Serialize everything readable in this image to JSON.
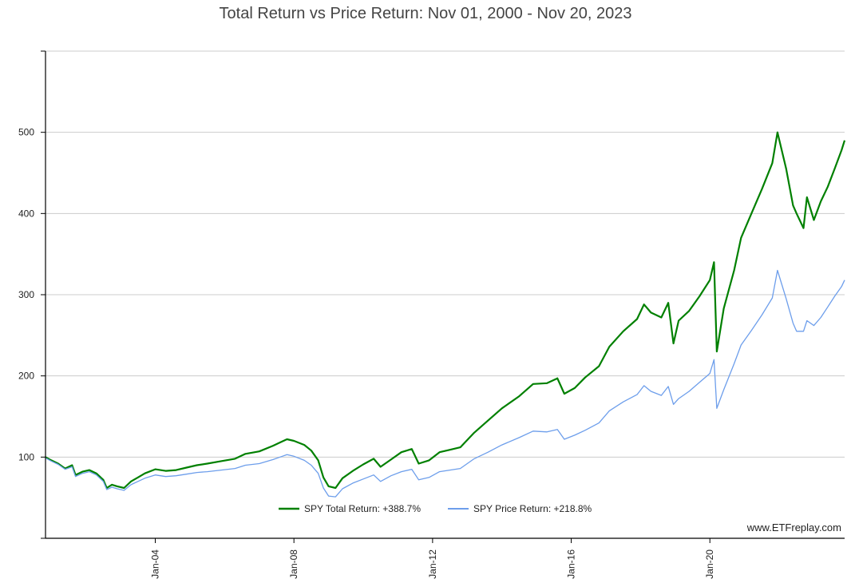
{
  "chart_data": {
    "type": "line",
    "title": "Total Return vs Price Return: Nov 01, 2000 - Nov 20, 2023",
    "xlabel": "",
    "ylabel": "",
    "xlim": [
      2000.833,
      2023.887
    ],
    "ylim": [
      0,
      600
    ],
    "grid": true,
    "y_ticks": [
      {
        "value": 100,
        "label": "100"
      },
      {
        "value": 200,
        "label": "200"
      },
      {
        "value": 300,
        "label": "300"
      },
      {
        "value": 400,
        "label": "400"
      },
      {
        "value": 500,
        "label": "500"
      }
    ],
    "x_ticks": [
      {
        "value": 2004.0,
        "label": "Jan-04"
      },
      {
        "value": 2008.0,
        "label": "Jan-08"
      },
      {
        "value": 2012.0,
        "label": "Jan-12"
      },
      {
        "value": 2016.0,
        "label": "Jan-16"
      },
      {
        "value": 2020.0,
        "label": "Jan-20"
      }
    ],
    "legend_position": "bottom-center",
    "series": [
      {
        "name": "SPY Total Return: +388.7%",
        "color": "#008000",
        "x": [
          2000.83,
          2001.0,
          2001.2,
          2001.4,
          2001.6,
          2001.7,
          2001.9,
          2002.1,
          2002.3,
          2002.5,
          2002.6,
          2002.75,
          2002.9,
          2003.1,
          2003.3,
          2003.5,
          2003.7,
          2004.0,
          2004.3,
          2004.6,
          2004.9,
          2005.2,
          2005.5,
          2005.9,
          2006.3,
          2006.6,
          2007.0,
          2007.4,
          2007.6,
          2007.8,
          2008.0,
          2008.3,
          2008.5,
          2008.7,
          2008.85,
          2009.0,
          2009.2,
          2009.4,
          2009.7,
          2010.0,
          2010.3,
          2010.5,
          2010.8,
          2011.1,
          2011.4,
          2011.6,
          2011.9,
          2012.2,
          2012.5,
          2012.8,
          2013.2,
          2013.6,
          2014.0,
          2014.5,
          2014.9,
          2015.3,
          2015.6,
          2015.8,
          2016.1,
          2016.4,
          2016.8,
          2017.1,
          2017.5,
          2017.9,
          2018.1,
          2018.3,
          2018.6,
          2018.8,
          2018.95,
          2019.1,
          2019.4,
          2019.7,
          2020.0,
          2020.12,
          2020.2,
          2020.4,
          2020.7,
          2020.9,
          2021.2,
          2021.5,
          2021.8,
          2021.95,
          2022.2,
          2022.4,
          2022.5,
          2022.7,
          2022.8,
          2023.0,
          2023.2,
          2023.4,
          2023.6,
          2023.8,
          2023.887
        ],
        "values": [
          100,
          96,
          92,
          86,
          90,
          78,
          82,
          84,
          80,
          72,
          62,
          66,
          64,
          62,
          70,
          75,
          80,
          85,
          83,
          84,
          87,
          90,
          92,
          95,
          98,
          104,
          107,
          114,
          118,
          122,
          120,
          115,
          108,
          96,
          75,
          64,
          62,
          74,
          83,
          91,
          98,
          88,
          97,
          106,
          110,
          92,
          96,
          106,
          109,
          112,
          130,
          145,
          160,
          175,
          190,
          191,
          197,
          178,
          185,
          198,
          212,
          236,
          255,
          270,
          288,
          278,
          272,
          290,
          240,
          268,
          280,
          298,
          318,
          340,
          230,
          283,
          330,
          370,
          400,
          430,
          462,
          500,
          455,
          410,
          400,
          382,
          420,
          392,
          415,
          433,
          455,
          478,
          490
        ]
      },
      {
        "name": "SPY Price Return: +218.8%",
        "color": "#6d9eeb",
        "x": [
          2000.83,
          2001.0,
          2001.2,
          2001.4,
          2001.6,
          2001.7,
          2001.9,
          2002.1,
          2002.3,
          2002.5,
          2002.6,
          2002.75,
          2002.9,
          2003.1,
          2003.3,
          2003.5,
          2003.7,
          2004.0,
          2004.3,
          2004.6,
          2004.9,
          2005.2,
          2005.5,
          2005.9,
          2006.3,
          2006.6,
          2007.0,
          2007.4,
          2007.6,
          2007.8,
          2008.0,
          2008.3,
          2008.5,
          2008.7,
          2008.85,
          2009.0,
          2009.2,
          2009.4,
          2009.7,
          2010.0,
          2010.3,
          2010.5,
          2010.8,
          2011.1,
          2011.4,
          2011.6,
          2011.9,
          2012.2,
          2012.5,
          2012.8,
          2013.2,
          2013.6,
          2014.0,
          2014.5,
          2014.9,
          2015.3,
          2015.6,
          2015.8,
          2016.1,
          2016.4,
          2016.8,
          2017.1,
          2017.5,
          2017.9,
          2018.1,
          2018.3,
          2018.6,
          2018.8,
          2018.95,
          2019.1,
          2019.4,
          2019.7,
          2020.0,
          2020.12,
          2020.2,
          2020.4,
          2020.7,
          2020.9,
          2021.2,
          2021.5,
          2021.8,
          2021.95,
          2022.2,
          2022.4,
          2022.5,
          2022.7,
          2022.8,
          2023.0,
          2023.2,
          2023.4,
          2023.6,
          2023.8,
          2023.887
        ],
        "values": [
          99,
          95,
          91,
          85,
          88,
          76,
          80,
          82,
          78,
          70,
          60,
          63,
          61,
          59,
          66,
          70,
          74,
          78,
          76,
          77,
          79,
          81,
          82,
          84,
          86,
          90,
          92,
          97,
          100,
          103,
          101,
          96,
          90,
          80,
          62,
          52,
          51,
          61,
          68,
          73,
          78,
          70,
          77,
          82,
          85,
          72,
          75,
          82,
          84,
          86,
          98,
          106,
          115,
          124,
          132,
          131,
          134,
          122,
          127,
          133,
          142,
          157,
          168,
          177,
          188,
          181,
          176,
          187,
          165,
          172,
          181,
          192,
          203,
          220,
          160,
          183,
          215,
          238,
          256,
          275,
          296,
          330,
          295,
          265,
          255,
          255,
          268,
          262,
          272,
          285,
          298,
          310,
          318
        ]
      }
    ]
  },
  "watermark": "www.ETFreplay.com"
}
